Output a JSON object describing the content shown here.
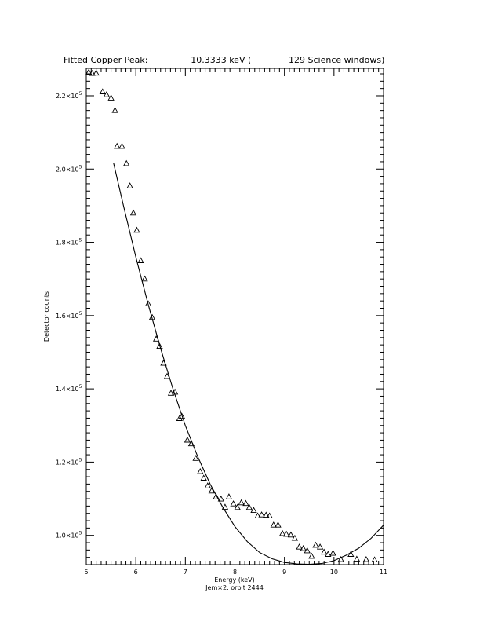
{
  "chart_data": {
    "type": "scatter",
    "title": {
      "prefix": "Fitted Copper Peak:",
      "value": "−10.3333 keV (",
      "suffix": "129 Science windows)"
    },
    "subtitle": "Jem×2: orbit 2444",
    "xlabel": "Energy (keV)",
    "ylabel": "Detector counts",
    "xlim": [
      5,
      11
    ],
    "ylim": [
      92000,
      227500
    ],
    "x_ticks": [
      "5",
      "6",
      "7",
      "8",
      "9",
      "10",
      "11"
    ],
    "y_ticks": [
      {
        "value": 100000,
        "mantissa": "1.0×10",
        "exp": "5"
      },
      {
        "value": 120000,
        "mantissa": "1.2×10",
        "exp": "5"
      },
      {
        "value": 140000,
        "mantissa": "1.4×10",
        "exp": "5"
      },
      {
        "value": 160000,
        "mantissa": "1.6×10",
        "exp": "5"
      },
      {
        "value": 180000,
        "mantissa": "1.8×10",
        "exp": "5"
      },
      {
        "value": 200000,
        "mantissa": "2.0×10",
        "exp": "5"
      },
      {
        "value": 220000,
        "mantissa": "2.2×10",
        "exp": "5"
      }
    ],
    "series": [
      {
        "marker": "triangle",
        "points": [
          [
            5.05,
            226400
          ],
          [
            5.12,
            226100
          ],
          [
            5.2,
            226200
          ],
          [
            5.33,
            221100
          ],
          [
            5.41,
            220300
          ],
          [
            5.5,
            219400
          ],
          [
            5.58,
            216000
          ],
          [
            5.62,
            206200
          ],
          [
            5.72,
            206200
          ],
          [
            5.81,
            201500
          ],
          [
            5.88,
            195400
          ],
          [
            5.95,
            188000
          ],
          [
            6.02,
            183300
          ],
          [
            6.1,
            175000
          ],
          [
            6.18,
            170000
          ],
          [
            6.25,
            163200
          ],
          [
            6.33,
            159500
          ],
          [
            6.41,
            153600
          ],
          [
            6.48,
            151600
          ],
          [
            6.56,
            147000
          ],
          [
            6.63,
            143400
          ],
          [
            6.71,
            138800
          ],
          [
            6.79,
            139100
          ],
          [
            6.88,
            131900
          ],
          [
            6.93,
            132500
          ],
          [
            7.04,
            126000
          ],
          [
            7.12,
            125000
          ],
          [
            7.21,
            121000
          ],
          [
            7.3,
            117400
          ],
          [
            7.37,
            115600
          ],
          [
            7.45,
            113500
          ],
          [
            7.53,
            112100
          ],
          [
            7.62,
            110500
          ],
          [
            7.72,
            109900
          ],
          [
            7.8,
            107700
          ],
          [
            7.88,
            110500
          ],
          [
            7.97,
            108600
          ],
          [
            8.05,
            107600
          ],
          [
            8.13,
            108900
          ],
          [
            8.22,
            108700
          ],
          [
            8.29,
            107600
          ],
          [
            8.38,
            106800
          ],
          [
            8.46,
            105300
          ],
          [
            8.54,
            105600
          ],
          [
            8.63,
            105500
          ],
          [
            8.7,
            105300
          ],
          [
            8.78,
            102800
          ],
          [
            8.87,
            102800
          ],
          [
            8.96,
            100500
          ],
          [
            9.04,
            100300
          ],
          [
            9.13,
            100100
          ],
          [
            9.21,
            99200
          ],
          [
            9.3,
            96800
          ],
          [
            9.38,
            96400
          ],
          [
            9.46,
            95800
          ],
          [
            9.55,
            94300
          ],
          [
            9.63,
            97300
          ],
          [
            9.72,
            96800
          ],
          [
            9.8,
            95400
          ],
          [
            9.88,
            94800
          ],
          [
            9.98,
            95100
          ],
          [
            10.14,
            93400
          ],
          [
            10.34,
            94800
          ],
          [
            10.46,
            93500
          ],
          [
            10.65,
            93400
          ],
          [
            10.82,
            93300
          ]
        ]
      },
      {
        "marker": "line",
        "points": [
          [
            5.55,
            201700
          ],
          [
            5.75,
            190000
          ],
          [
            6.0,
            176000
          ],
          [
            6.25,
            163000
          ],
          [
            6.5,
            151000
          ],
          [
            6.75,
            140000
          ],
          [
            7.0,
            130000
          ],
          [
            7.25,
            121500
          ],
          [
            7.5,
            114000
          ],
          [
            7.75,
            107800
          ],
          [
            8.0,
            102400
          ],
          [
            8.25,
            98300
          ],
          [
            8.5,
            95300
          ],
          [
            8.75,
            93600
          ],
          [
            9.0,
            92600
          ],
          [
            9.25,
            92200
          ],
          [
            9.5,
            92100
          ],
          [
            9.75,
            92300
          ],
          [
            10.0,
            93100
          ],
          [
            10.25,
            94600
          ],
          [
            10.5,
            96500
          ],
          [
            10.75,
            99200
          ],
          [
            11.0,
            102800
          ]
        ]
      }
    ]
  }
}
